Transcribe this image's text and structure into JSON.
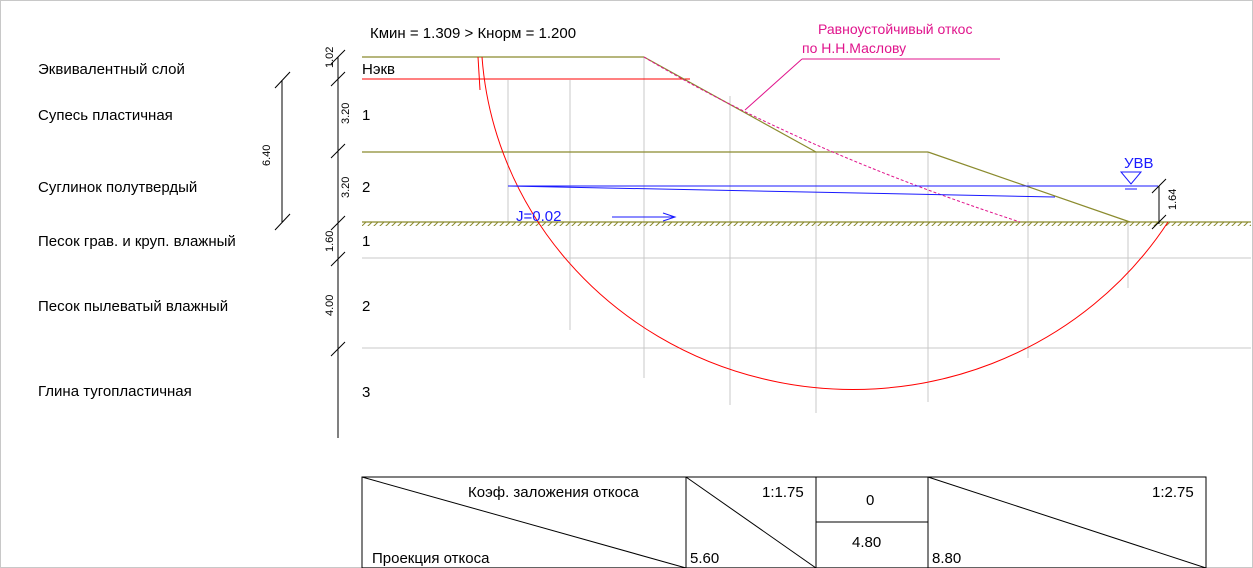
{
  "header": {
    "stability": "Кмин = 1.309 > Кнорм = 1.200"
  },
  "annotation": {
    "line1": "Равноустойчивый откос",
    "line2": "по Н.Н.Маслову"
  },
  "layers": [
    {
      "name": "Эквивалентный слой",
      "num": "Нэкв",
      "thickness": "1.02"
    },
    {
      "name": "Супесь пластичная",
      "num": "1",
      "thickness": "3.20"
    },
    {
      "name": "Суглинок полутвердый",
      "num": "2",
      "thickness": "3.20"
    },
    {
      "name": "Песок грав. и круп. влажный",
      "num": "1",
      "thickness": "1.60"
    },
    {
      "name": "Песок пылеватый влажный",
      "num": "2",
      "thickness": "4.00"
    },
    {
      "name": "Глина тугопластичная",
      "num": "3",
      "thickness": ""
    }
  ],
  "total_thickness": "6.40",
  "water": {
    "label": "УВВ",
    "height": "1.64",
    "gradient": "J=0.02"
  },
  "table": {
    "header": "Коэф. заложения откоса",
    "footer": "Проекция откоса",
    "ratio1": "1:1.75",
    "proj1": "5.60",
    "ratio2": "0",
    "proj2": "4.80",
    "ratio3": "1:2.75",
    "proj3": "8.80"
  },
  "colors": {
    "soil": "#8b8b2e",
    "water": "#1a1aff",
    "arc": "#ff0000",
    "annot": "#e0148c",
    "grid": "#c8c8c8"
  }
}
